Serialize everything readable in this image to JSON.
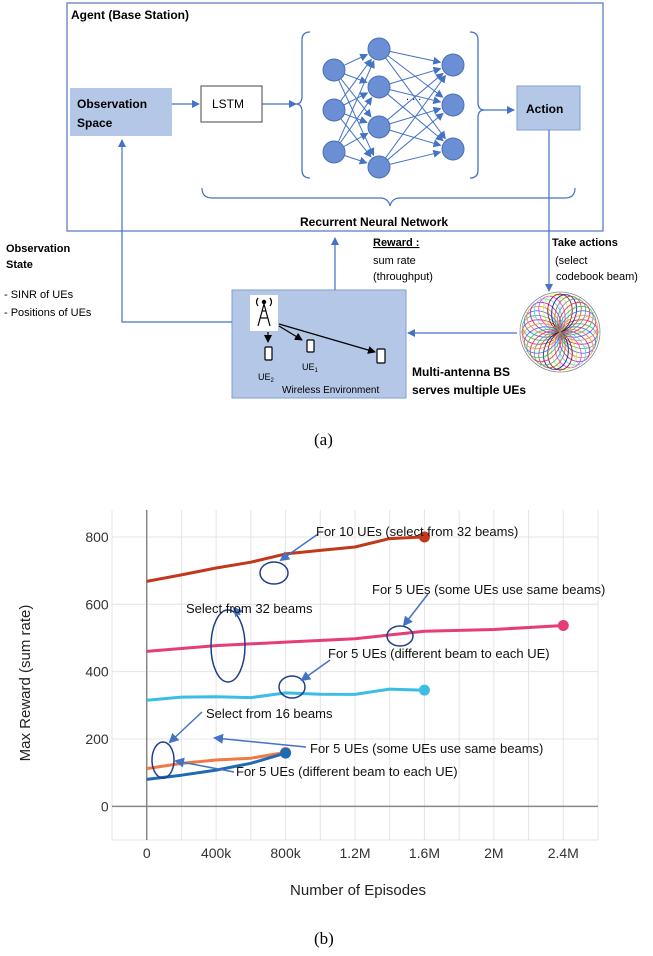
{
  "diagram": {
    "agent_title": "Agent (Base Station)",
    "observation_space": [
      "Observation",
      "Space"
    ],
    "lstm": "LSTM",
    "action": "Action",
    "rnn_label": "Recurrent Neural Network",
    "reward_title": "Reward :",
    "reward_lines": [
      "sum rate",
      "(throughput)"
    ],
    "take_actions_title": "Take actions",
    "take_actions_lines": [
      "(select",
      "codebook beam)"
    ],
    "observation_state": [
      "Observation",
      "State"
    ],
    "observation_items": [
      "- SINR of UEs",
      "- Positions of UEs"
    ],
    "env_label": "Wireless Environment",
    "ue1": "UE",
    "ue1_sub": "1",
    "ue2": "UE",
    "ue2_sub": "2",
    "bs_label": [
      "Multi-antenna  BS",
      "serves multiple  UEs"
    ],
    "dots": ". . .",
    "colors": {
      "box_fill": "#b4c7e7",
      "box_stroke": "#2f5597",
      "frame": "#5b7fbf",
      "node_fill": "#6b8fd4",
      "arrow": "#4472c4"
    }
  },
  "caption_a": "(a)",
  "caption_b": "(b)",
  "chart_data": {
    "type": "line",
    "xlabel": "Number of Episodes",
    "ylabel": "Max Reward (sum rate)",
    "xlim": [
      -200000,
      2600000
    ],
    "ylim": [
      -100,
      880
    ],
    "x_ticks": [
      0,
      400000,
      800000,
      1200000,
      1600000,
      2000000,
      2400000
    ],
    "x_tick_labels": [
      "0",
      "400k",
      "800k",
      "1.2M",
      "1.6M",
      "2M",
      "2.4M"
    ],
    "y_ticks": [
      0,
      200,
      400,
      600,
      800
    ],
    "y_tick_labels": [
      "0",
      "200",
      "400",
      "600",
      "800"
    ],
    "grid": true,
    "series": [
      {
        "name": "For 10 UEs (select from 32 beams)",
        "color": "#c0391b",
        "x": [
          0,
          200000,
          400000,
          600000,
          800000,
          1000000,
          1200000,
          1400000,
          1600000
        ],
        "y": [
          668,
          685,
          710,
          732,
          745,
          760,
          775,
          788,
          800
        ]
      },
      {
        "name": "For 5 UEs (some UEs use same beams)",
        "color": "#e63d7a",
        "x": [
          0,
          400000,
          800000,
          1200000,
          1600000,
          2000000,
          2400000
        ],
        "y": [
          460,
          475,
          490,
          505,
          515,
          525,
          537
        ]
      },
      {
        "name": "For 5 UEs (different beam to each UE)",
        "color": "#3bbde4",
        "x": [
          0,
          200000,
          400000,
          600000,
          800000,
          1000000,
          1200000,
          1400000,
          1600000
        ],
        "y": [
          315,
          322,
          328,
          330,
          332,
          333,
          337,
          341,
          345
        ]
      },
      {
        "name": "For 5 UEs (some UEs use same beams)",
        "color": "#f07a45",
        "x": [
          0,
          200000,
          400000,
          600000,
          800000
        ],
        "y": [
          112,
          125,
          140,
          150,
          160
        ]
      },
      {
        "name": "For 5 UEs (different beam to each UE)",
        "color": "#1f6bb3",
        "x": [
          0,
          200000,
          400000,
          600000,
          800000
        ],
        "y": [
          80,
          90,
          110,
          135,
          158
        ]
      }
    ],
    "annotations": [
      "For 10 UEs (select from 32 beams)",
      "For 5 UEs (some UEs use same beams)",
      "Select from 32 beams",
      "For 5 UEs (different beam to each UE)",
      "Select from 16 beams",
      "For 5 UEs (some UEs use same beams)",
      "For 5 UEs (different beam to each UE)"
    ]
  }
}
